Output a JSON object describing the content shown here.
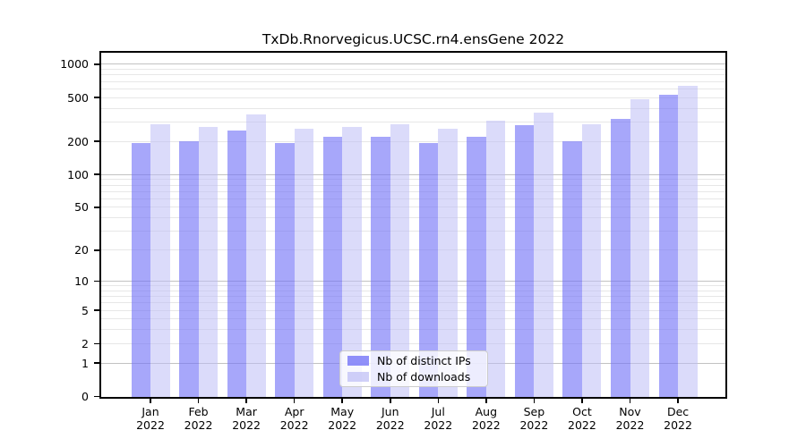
{
  "title": "TxDb.Rnorvegicus.UCSC.rn4.ensGene 2022",
  "chart_data": {
    "type": "bar",
    "title": "TxDb.Rnorvegicus.UCSC.rn4.ensGene 2022",
    "categories": [
      {
        "month": "Jan",
        "year": "2022"
      },
      {
        "month": "Feb",
        "year": "2022"
      },
      {
        "month": "Mar",
        "year": "2022"
      },
      {
        "month": "Apr",
        "year": "2022"
      },
      {
        "month": "May",
        "year": "2022"
      },
      {
        "month": "Jun",
        "year": "2022"
      },
      {
        "month": "Jul",
        "year": "2022"
      },
      {
        "month": "Aug",
        "year": "2022"
      },
      {
        "month": "Sep",
        "year": "2022"
      },
      {
        "month": "Oct",
        "year": "2022"
      },
      {
        "month": "Nov",
        "year": "2022"
      },
      {
        "month": "Dec",
        "year": "2022"
      }
    ],
    "series": [
      {
        "name": "Nb of distinct IPs",
        "color": "rgba(113,113,247,0.62)",
        "values": [
          195,
          200,
          250,
          195,
          220,
          220,
          195,
          220,
          280,
          201,
          322,
          528
        ]
      },
      {
        "name": "Nb of downloads",
        "color": "rgba(190,190,245,0.55)",
        "values": [
          285,
          270,
          350,
          260,
          273,
          285,
          260,
          310,
          365,
          288,
          480,
          636
        ]
      }
    ],
    "y_axis": {
      "scale": "log1p",
      "ticks": [
        0,
        1,
        2,
        5,
        10,
        20,
        50,
        100,
        200,
        500,
        1000
      ],
      "gridlines": [
        1,
        2,
        3,
        4,
        5,
        6,
        7,
        8,
        9,
        10,
        20,
        30,
        40,
        50,
        60,
        70,
        80,
        90,
        100,
        200,
        300,
        400,
        500,
        600,
        700,
        800,
        900,
        1000
      ],
      "major_gridlines": [
        1,
        10,
        100,
        1000
      ],
      "ylim": [
        0,
        1270
      ]
    },
    "legend": {
      "position": "inside-bottom-center"
    },
    "grid": "on"
  }
}
